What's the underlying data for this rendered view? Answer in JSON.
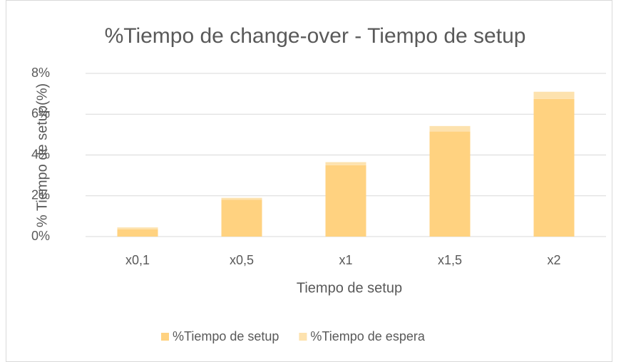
{
  "chart_data": {
    "type": "stacked_bar",
    "title": "%Tiempo de change-over - Tiempo de setup",
    "x_label": "Tiempo de setup",
    "y_label": "% Tiempo de setup(%)",
    "categories": [
      "x0,1",
      "x0,5",
      "x1",
      "x1,5",
      "x2"
    ],
    "series": [
      {
        "name": "%Tiempo de setup",
        "color": "#ffd280",
        "values": [
          0.35,
          1.8,
          3.5,
          5.15,
          6.75
        ]
      },
      {
        "name": "%Tiempo de espera",
        "color": "#fde2ae",
        "values": [
          0.1,
          0.1,
          0.15,
          0.27,
          0.35
        ]
      }
    ],
    "ylim": [
      0,
      8
    ],
    "yticks": [
      {
        "value": 0,
        "label": "0%"
      },
      {
        "value": 2,
        "label": "2%"
      },
      {
        "value": 4,
        "label": "4%"
      },
      {
        "value": 6,
        "label": "6%"
      },
      {
        "value": 8,
        "label": "8%"
      }
    ],
    "grid": true,
    "legend": "bottom"
  }
}
